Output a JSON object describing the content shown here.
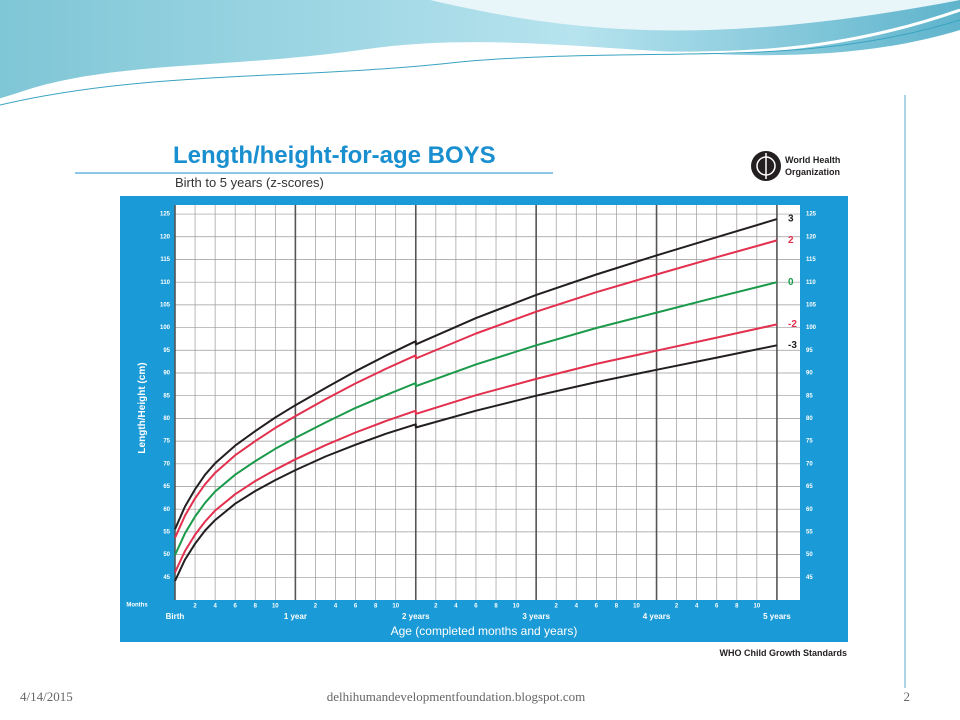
{
  "slide": {
    "date": "4/14/2015",
    "footer": "delhihumandevelopmentfoundation.blogspot.com",
    "page_number": "2"
  },
  "chart_data": {
    "type": "line",
    "title": "Length/height-for-age BOYS",
    "subtitle": "Birth to 5 years (z-scores)",
    "logo_text": [
      "World Health",
      "Organization"
    ],
    "y_label": "Length/Height (cm)",
    "x_label": "Age (completed months and years)",
    "x_unit_label": "Months",
    "source": "WHO Child Growth Standards",
    "x": [
      0,
      1,
      2,
      3,
      4,
      6,
      8,
      10,
      12,
      15,
      18,
      21,
      24,
      24,
      30,
      36,
      42,
      48,
      54,
      60
    ],
    "series": [
      {
        "name": "3",
        "color": "#231f20",
        "values": [
          55.6,
          60.6,
          64.4,
          67.6,
          70.1,
          74.0,
          77.2,
          80.2,
          82.9,
          86.7,
          90.4,
          93.8,
          97.0,
          96.3,
          102.1,
          107.2,
          111.7,
          115.9,
          119.9,
          123.9
        ]
      },
      {
        "name": "2",
        "color": "#e2304e",
        "values": [
          53.7,
          58.6,
          62.4,
          65.5,
          68.0,
          71.9,
          75.0,
          77.9,
          80.5,
          84.2,
          87.7,
          90.9,
          93.9,
          93.2,
          98.7,
          103.5,
          107.8,
          111.7,
          115.5,
          119.2
        ]
      },
      {
        "name": "0",
        "color": "#1a9a4a",
        "values": [
          49.9,
          54.7,
          58.4,
          61.4,
          63.9,
          67.6,
          70.6,
          73.3,
          75.7,
          79.1,
          82.3,
          85.1,
          87.8,
          87.1,
          91.9,
          96.1,
          99.9,
          103.3,
          106.7,
          110.0
        ]
      },
      {
        "name": "-2",
        "color": "#e2304e",
        "values": [
          46.1,
          50.8,
          54.4,
          57.3,
          59.7,
          63.3,
          66.2,
          68.7,
          71.0,
          74.1,
          76.9,
          79.4,
          81.7,
          81.0,
          85.1,
          88.7,
          92.0,
          94.9,
          97.8,
          100.7
        ]
      },
      {
        "name": "-3",
        "color": "#231f20",
        "values": [
          44.2,
          48.9,
          52.4,
          55.3,
          57.6,
          61.2,
          64.0,
          66.4,
          68.6,
          71.6,
          74.2,
          76.6,
          78.7,
          78.0,
          81.7,
          85.0,
          88.0,
          90.7,
          93.4,
          96.1
        ]
      }
    ],
    "xlim": [
      0,
      62.3
    ],
    "ylim": [
      40,
      127
    ],
    "yticks": [
      45,
      50,
      55,
      60,
      65,
      70,
      75,
      80,
      85,
      90,
      95,
      100,
      105,
      110,
      115,
      120,
      125
    ],
    "xticks": [
      {
        "value": 0,
        "label": "Birth"
      },
      2,
      4,
      6,
      8,
      10,
      {
        "value": 12,
        "label": "1 year"
      },
      {
        "value": 14,
        "label": "2"
      },
      {
        "value": 16,
        "label": "4"
      },
      {
        "value": 18,
        "label": "6"
      },
      {
        "value": 20,
        "label": "8"
      },
      {
        "value": 22,
        "label": "10"
      },
      {
        "value": 24,
        "label": "2 years"
      },
      {
        "value": 26,
        "label": "2"
      },
      {
        "value": 28,
        "label": "4"
      },
      {
        "value": 30,
        "label": "6"
      },
      {
        "value": 32,
        "label": "8"
      },
      {
        "value": 34,
        "label": "10"
      },
      {
        "value": 36,
        "label": "3 years"
      },
      {
        "value": 38,
        "label": "2"
      },
      {
        "value": 40,
        "label": "4"
      },
      {
        "value": 42,
        "label": "6"
      },
      {
        "value": 44,
        "label": "8"
      },
      {
        "value": 46,
        "label": "10"
      },
      {
        "value": 48,
        "label": "4 years"
      },
      {
        "value": 50,
        "label": "2"
      },
      {
        "value": 52,
        "label": "4"
      },
      {
        "value": 54,
        "label": "6"
      },
      {
        "value": 56,
        "label": "8"
      },
      {
        "value": 58,
        "label": "10"
      },
      {
        "value": 60,
        "label": "5 years"
      }
    ],
    "grid": true
  }
}
